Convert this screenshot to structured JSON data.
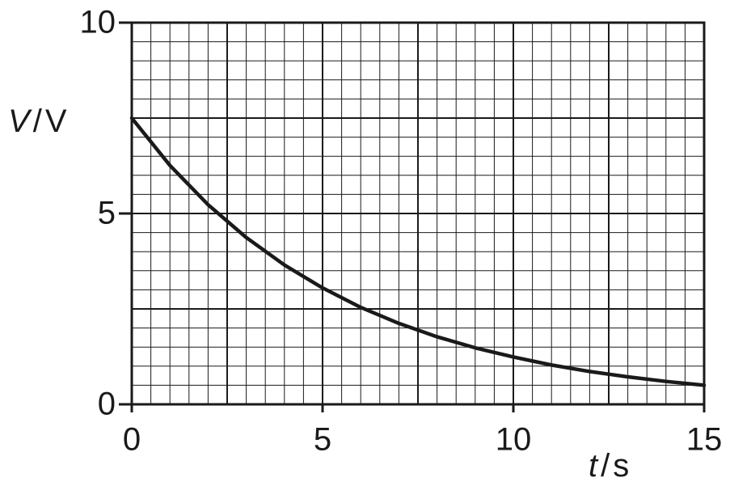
{
  "chart_data": {
    "type": "line",
    "x_label": [
      "t",
      "/",
      "s"
    ],
    "y_label": [
      "V",
      "/",
      "V"
    ],
    "x": [
      0,
      1,
      2,
      3,
      4,
      5,
      6,
      7,
      8,
      9,
      10,
      11,
      12,
      13,
      14,
      15
    ],
    "series": [
      {
        "color": "#1a1a1a",
        "values": [
          7.5,
          6.26,
          5.23,
          4.37,
          3.65,
          3.05,
          2.54,
          2.12,
          1.77,
          1.48,
          1.24,
          1.03,
          0.86,
          0.72,
          0.6,
          0.5
        ]
      }
    ],
    "xlim": [
      0,
      15
    ],
    "ylim": [
      0,
      10
    ],
    "xticks": [
      0,
      5,
      10,
      15
    ],
    "yticks": [
      0,
      5,
      10
    ],
    "grid": true,
    "grid_step": 0.5,
    "major_grid_step": 2.5
  }
}
